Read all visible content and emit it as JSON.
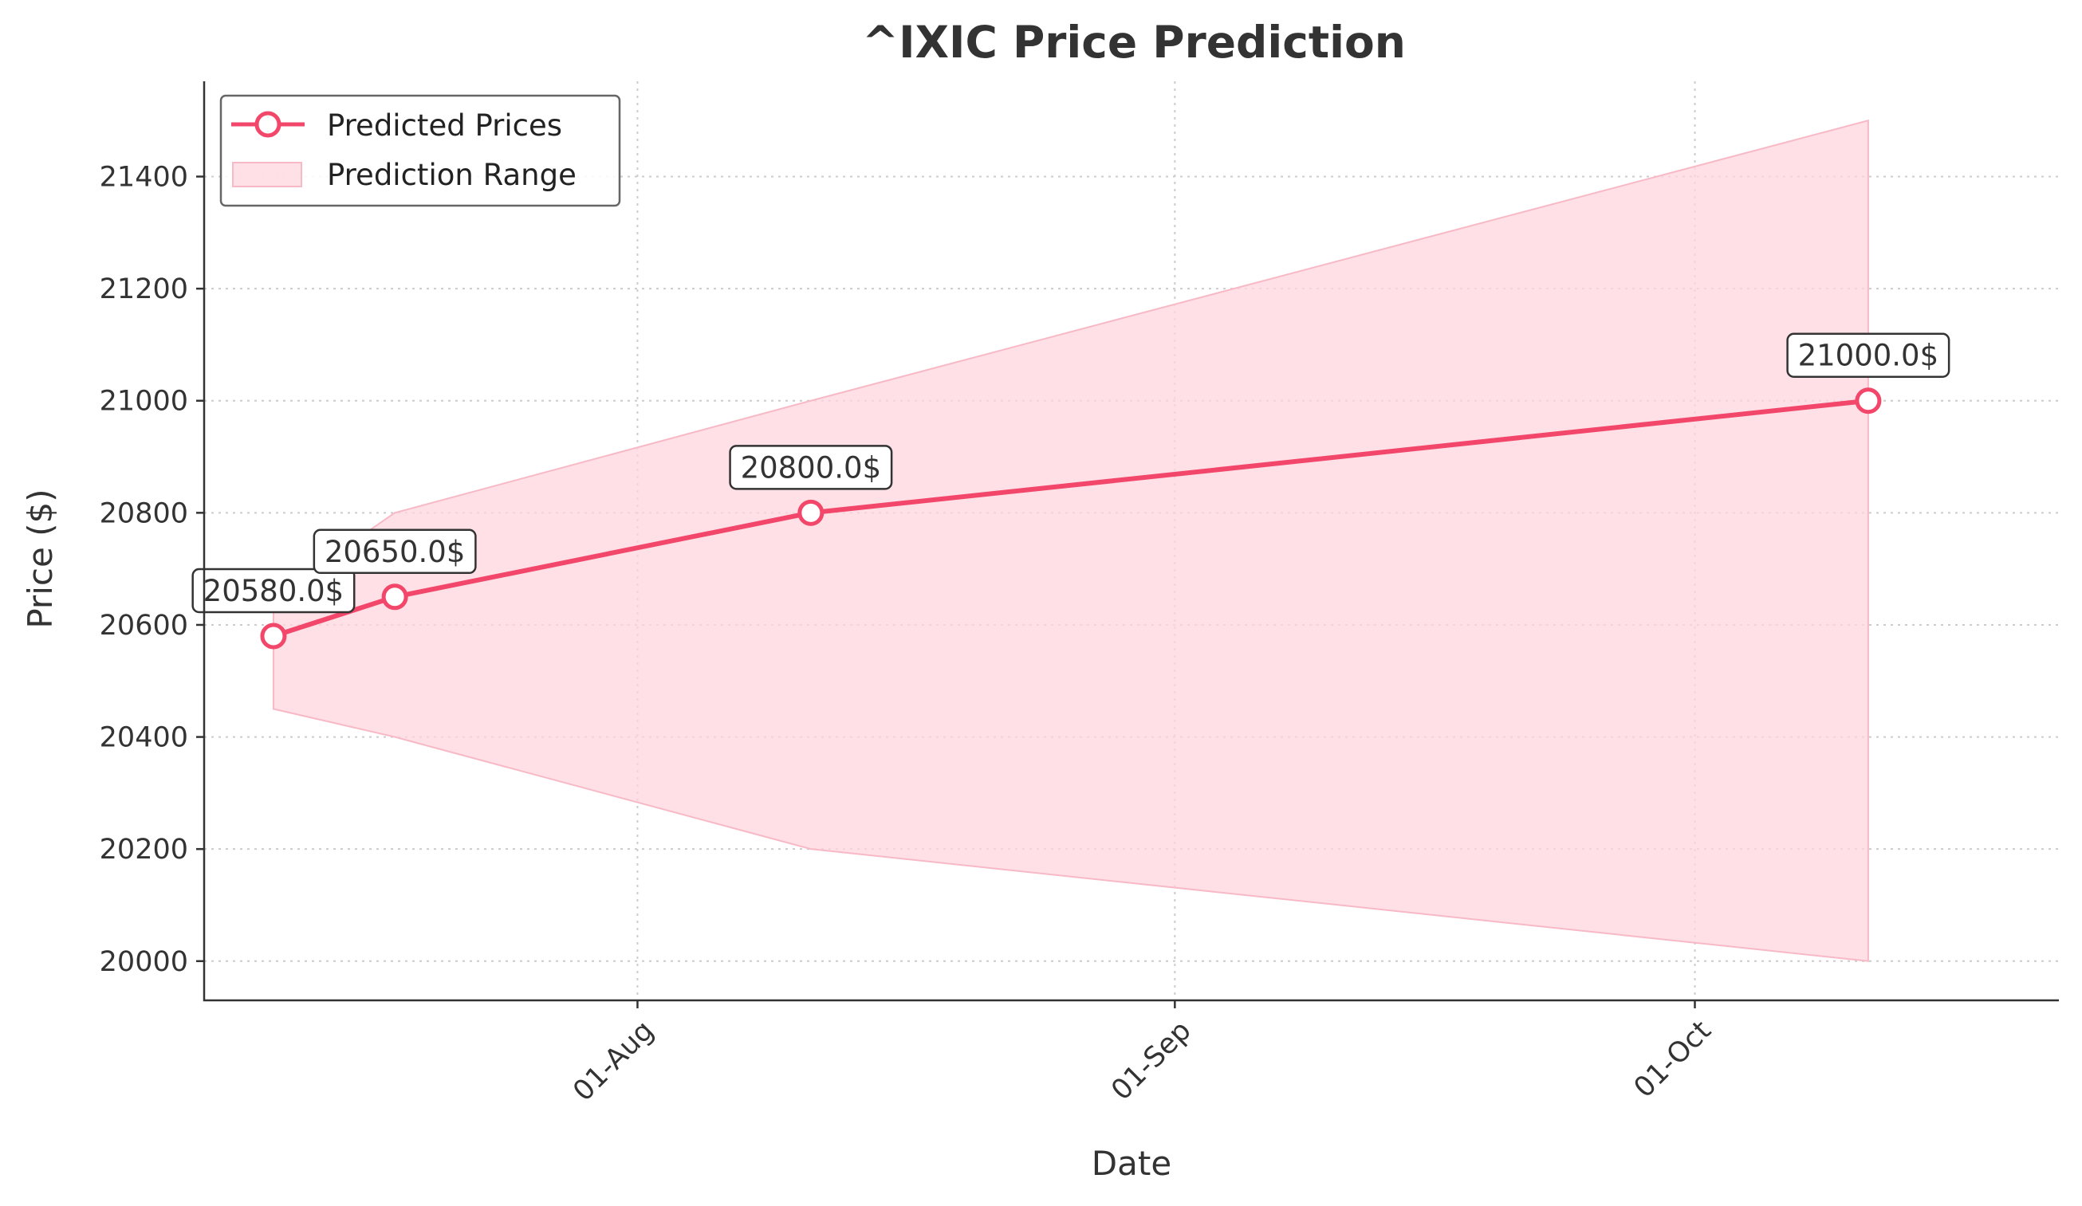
{
  "chart_data": {
    "type": "line",
    "title": "^IXIC Price Prediction",
    "xlabel": "Date",
    "ylabel": "Price ($)",
    "x_ticks": [
      {
        "date": "2025-08-01",
        "label": "01-Aug"
      },
      {
        "date": "2025-09-01",
        "label": "01-Sep"
      },
      {
        "date": "2025-10-01",
        "label": "01-Oct"
      }
    ],
    "y_ticks": [
      20000,
      20200,
      20400,
      20600,
      20800,
      21000,
      21200,
      21400
    ],
    "xlim": [
      "2025-07-07",
      "2025-10-22"
    ],
    "ylim": [
      19930,
      21570
    ],
    "grid": true,
    "legend_position": "top-left",
    "series": [
      {
        "name": "Predicted Prices",
        "type": "line",
        "color": "#f2476a",
        "points": [
          {
            "x": "2025-07-11",
            "y": 20580,
            "label": "20580.0$"
          },
          {
            "x": "2025-07-18",
            "y": 20650,
            "label": "20650.0$"
          },
          {
            "x": "2025-08-11",
            "y": 20800,
            "label": "20800.0$"
          },
          {
            "x": "2025-10-11",
            "y": 21000,
            "label": "21000.0$"
          }
        ]
      },
      {
        "name": "Prediction Range",
        "type": "area",
        "color": "#ffd6de",
        "points": [
          {
            "x": "2025-07-11",
            "low": 20450,
            "high": 20650
          },
          {
            "x": "2025-07-18",
            "low": 20400,
            "high": 20800
          },
          {
            "x": "2025-08-11",
            "low": 20200,
            "high": 21000
          },
          {
            "x": "2025-10-11",
            "low": 20000,
            "high": 21500
          }
        ]
      }
    ]
  }
}
